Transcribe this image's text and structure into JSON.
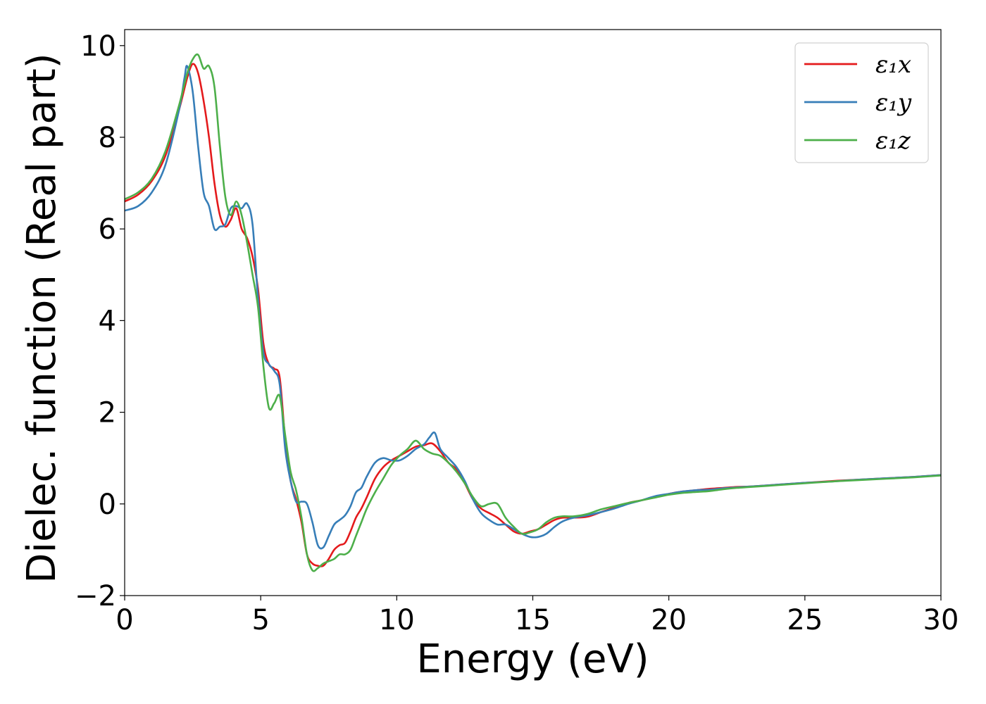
{
  "chart_data": {
    "type": "line",
    "xlabel": "Energy (eV)",
    "ylabel": "Dielec. function (Real part)",
    "xlim": [
      0,
      30
    ],
    "ylim": [
      -2,
      10.35
    ],
    "xticks": [
      0,
      5,
      10,
      15,
      20,
      25,
      30
    ],
    "yticks": [
      -2,
      0,
      2,
      4,
      6,
      8,
      10
    ],
    "xtick_labels": [
      "0",
      "5",
      "10",
      "15",
      "20",
      "25",
      "30"
    ],
    "ytick_labels": [
      "−2",
      "0",
      "2",
      "4",
      "6",
      "8",
      "10"
    ],
    "grid": false,
    "legend": {
      "position": "top-right"
    },
    "series": [
      {
        "name": "ε₁x",
        "color": "#e41a1c",
        "x": [
          0,
          0.5,
          1.0,
          1.5,
          2.0,
          2.3,
          2.5,
          2.7,
          2.9,
          3.1,
          3.3,
          3.5,
          3.7,
          3.9,
          4.1,
          4.3,
          4.5,
          4.7,
          4.9,
          5.1,
          5.3,
          5.5,
          5.7,
          5.9,
          6.1,
          6.3,
          6.5,
          6.7,
          6.9,
          7.1,
          7.3,
          7.5,
          7.7,
          7.9,
          8.1,
          8.3,
          8.5,
          8.7,
          8.9,
          9.2,
          9.5,
          9.8,
          10.1,
          10.4,
          10.7,
          11.0,
          11.3,
          11.6,
          11.9,
          12.2,
          12.5,
          12.8,
          13.1,
          13.4,
          13.7,
          14.0,
          14.3,
          14.6,
          14.9,
          15.2,
          15.5,
          15.8,
          16.1,
          16.5,
          17.0,
          17.5,
          18.0,
          18.5,
          19.0,
          19.5,
          20.0,
          20.5,
          21.0,
          21.5,
          22.0,
          22.5,
          23.0,
          24.0,
          25.0,
          26.0,
          27.0,
          28.0,
          29.0,
          30.0
        ],
        "values": [
          6.6,
          6.75,
          7.05,
          7.6,
          8.6,
          9.3,
          9.6,
          9.4,
          8.8,
          8.0,
          7.0,
          6.3,
          6.05,
          6.2,
          6.45,
          6.0,
          5.8,
          5.4,
          4.7,
          3.5,
          3.05,
          2.95,
          2.75,
          1.4,
          0.5,
          0.1,
          -0.4,
          -1.1,
          -1.3,
          -1.35,
          -1.35,
          -1.2,
          -1.0,
          -0.9,
          -0.85,
          -0.6,
          -0.3,
          -0.1,
          0.15,
          0.55,
          0.8,
          0.95,
          1.05,
          1.15,
          1.25,
          1.28,
          1.32,
          1.15,
          0.9,
          0.75,
          0.45,
          0.1,
          -0.1,
          -0.2,
          -0.3,
          -0.45,
          -0.6,
          -0.65,
          -0.6,
          -0.55,
          -0.45,
          -0.35,
          -0.3,
          -0.3,
          -0.28,
          -0.18,
          -0.08,
          0.02,
          0.08,
          0.15,
          0.22,
          0.27,
          0.3,
          0.33,
          0.35,
          0.37,
          0.38,
          0.42,
          0.46,
          0.5,
          0.53,
          0.56,
          0.59,
          0.63
        ]
      },
      {
        "name": "ε₁y",
        "color": "#377eb8",
        "x": [
          0,
          0.5,
          1.0,
          1.5,
          2.0,
          2.2,
          2.3,
          2.5,
          2.7,
          2.9,
          3.1,
          3.3,
          3.5,
          3.7,
          3.9,
          4.1,
          4.3,
          4.5,
          4.7,
          4.9,
          5.1,
          5.3,
          5.5,
          5.7,
          5.9,
          6.1,
          6.3,
          6.5,
          6.7,
          6.9,
          7.1,
          7.3,
          7.5,
          7.7,
          7.9,
          8.1,
          8.3,
          8.5,
          8.7,
          8.9,
          9.2,
          9.5,
          9.8,
          10.1,
          10.4,
          10.7,
          11.0,
          11.2,
          11.4,
          11.6,
          11.9,
          12.2,
          12.5,
          12.8,
          13.1,
          13.4,
          13.7,
          14.0,
          14.3,
          14.6,
          14.9,
          15.2,
          15.5,
          15.8,
          16.1,
          16.5,
          17.0,
          17.5,
          18.0,
          18.5,
          19.0,
          19.5,
          20.0,
          20.5,
          21.0,
          21.5,
          22.0,
          22.5,
          23.0,
          24.0,
          25.0,
          26.0,
          27.0,
          28.0,
          29.0,
          30.0
        ],
        "values": [
          6.4,
          6.5,
          6.8,
          7.4,
          8.6,
          9.3,
          9.55,
          9.0,
          7.8,
          6.8,
          6.5,
          6.0,
          6.05,
          6.1,
          6.45,
          6.5,
          6.45,
          6.55,
          6.1,
          4.5,
          3.3,
          3.05,
          2.9,
          2.6,
          1.2,
          0.5,
          0.05,
          0.05,
          0.0,
          -0.4,
          -0.9,
          -0.95,
          -0.7,
          -0.45,
          -0.35,
          -0.25,
          -0.05,
          0.25,
          0.35,
          0.6,
          0.9,
          1.0,
          0.95,
          0.95,
          1.05,
          1.2,
          1.3,
          1.45,
          1.55,
          1.2,
          1.0,
          0.8,
          0.5,
          0.1,
          -0.2,
          -0.35,
          -0.45,
          -0.45,
          -0.55,
          -0.65,
          -0.72,
          -0.72,
          -0.65,
          -0.5,
          -0.38,
          -0.3,
          -0.25,
          -0.18,
          -0.1,
          0.0,
          0.08,
          0.17,
          0.22,
          0.27,
          0.3,
          0.31,
          0.34,
          0.36,
          0.38,
          0.42,
          0.46,
          0.49,
          0.53,
          0.56,
          0.59,
          0.63
        ]
      },
      {
        "name": "ε₁z",
        "color": "#4daf4a",
        "x": [
          0,
          0.5,
          1.0,
          1.5,
          2.0,
          2.3,
          2.5,
          2.7,
          2.9,
          3.1,
          3.3,
          3.5,
          3.7,
          3.9,
          4.1,
          4.3,
          4.5,
          4.7,
          4.9,
          5.1,
          5.3,
          5.5,
          5.7,
          5.9,
          6.1,
          6.3,
          6.5,
          6.7,
          6.9,
          7.1,
          7.3,
          7.5,
          7.7,
          7.9,
          8.1,
          8.3,
          8.5,
          8.7,
          8.9,
          9.2,
          9.5,
          9.8,
          10.1,
          10.4,
          10.7,
          11.0,
          11.3,
          11.6,
          11.9,
          12.2,
          12.5,
          12.8,
          13.1,
          13.4,
          13.7,
          14.0,
          14.3,
          14.6,
          14.9,
          15.2,
          15.5,
          15.8,
          16.1,
          16.5,
          17.0,
          17.5,
          18.0,
          18.5,
          19.0,
          19.5,
          20.0,
          20.5,
          21.0,
          21.5,
          22.0,
          22.5,
          23.0,
          24.0,
          25.0,
          26.0,
          27.0,
          28.0,
          29.0,
          30.0
        ],
        "values": [
          6.65,
          6.8,
          7.1,
          7.7,
          8.7,
          9.4,
          9.7,
          9.8,
          9.5,
          9.55,
          9.1,
          7.8,
          6.7,
          6.3,
          6.6,
          6.3,
          5.7,
          5.0,
          4.3,
          3.0,
          2.1,
          2.2,
          2.35,
          1.5,
          0.7,
          0.3,
          -0.3,
          -1.1,
          -1.45,
          -1.4,
          -1.3,
          -1.25,
          -1.2,
          -1.1,
          -1.1,
          -1.0,
          -0.7,
          -0.4,
          -0.1,
          0.25,
          0.55,
          0.85,
          1.05,
          1.2,
          1.38,
          1.2,
          1.1,
          1.05,
          0.9,
          0.7,
          0.45,
          0.15,
          -0.05,
          0.0,
          0.0,
          -0.3,
          -0.5,
          -0.65,
          -0.62,
          -0.55,
          -0.4,
          -0.3,
          -0.27,
          -0.27,
          -0.22,
          -0.12,
          -0.05,
          0.02,
          0.08,
          0.14,
          0.2,
          0.24,
          0.26,
          0.28,
          0.32,
          0.35,
          0.37,
          0.41,
          0.45,
          0.49,
          0.52,
          0.55,
          0.58,
          0.62
        ]
      }
    ]
  }
}
